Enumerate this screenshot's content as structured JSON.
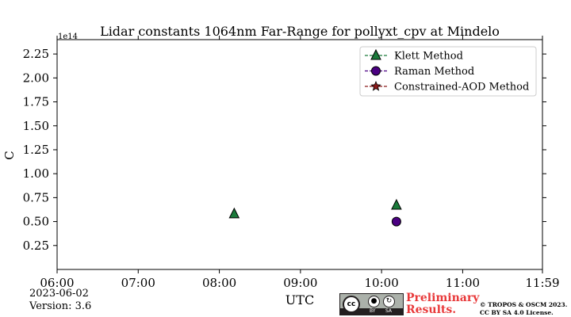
{
  "chart_data": {
    "type": "scatter",
    "title": "Lidar constants 1064nm Far-Range for pollyxt_cpv at Mindelo",
    "xlabel": "UTC",
    "ylabel": "C",
    "y_offset_text": "1e14",
    "x_range": [
      "06:00",
      "11:59"
    ],
    "ylim": [
      0.0,
      2.4
    ],
    "x_ticks": [
      "06:00",
      "07:00",
      "08:00",
      "09:00",
      "10:00",
      "11:00",
      "11:59"
    ],
    "y_ticks": [
      "0.25",
      "0.50",
      "0.75",
      "1.00",
      "1.25",
      "1.50",
      "1.75",
      "2.00",
      "2.25"
    ],
    "grid": false,
    "legend_position": "top-right",
    "series": [
      {
        "name": "Klett Method",
        "marker": "triangle",
        "color": "#1a7a3a",
        "points": [
          {
            "x": "08:11",
            "y": 0.58
          },
          {
            "x": "10:11",
            "y": 0.67
          }
        ]
      },
      {
        "name": "Raman Method",
        "marker": "circle",
        "color": "#4b0082",
        "points": [
          {
            "x": "10:11",
            "y": 0.5
          }
        ]
      },
      {
        "name": "Constrained-AOD Method",
        "marker": "star",
        "color": "#8b1a1a",
        "points": []
      }
    ]
  },
  "footer": {
    "date": "2023-06-02",
    "version": "Version: 3.6",
    "preliminary_line1": "Preliminary",
    "preliminary_line2": "Results.",
    "copyright_line1": "© TROPOS & OSCM 2023.",
    "copyright_line2": "CC BY SA 4.0 License.",
    "license_badge": {
      "cc": "cc",
      "by": "BY",
      "sa": "SA"
    }
  },
  "colors": {
    "preliminary": "#e8393a",
    "badge_bg": "#abb1aa",
    "badge_dark": "#231f20"
  }
}
